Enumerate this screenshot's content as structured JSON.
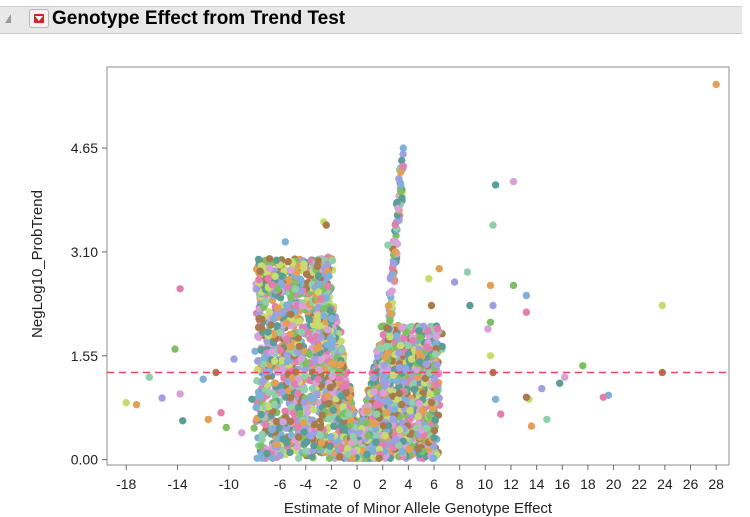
{
  "report": {
    "title": "Genotype Effect from Trend Test"
  },
  "chart_data": {
    "type": "scatter",
    "title": "",
    "xlabel": "Estimate of Minor Allele Genotype Effect",
    "ylabel": "NegLog10_ProbTrend",
    "xlim": [
      -19.5,
      29
    ],
    "ylim": [
      -0.08,
      5.86
    ],
    "x_ticks": [
      "-18",
      "-14",
      "-10",
      "-6",
      "-4",
      "-2",
      "0",
      "2",
      "4",
      "6",
      "8",
      "10",
      "12",
      "14",
      "16",
      "18",
      "20",
      "22",
      "24",
      "26",
      "28"
    ],
    "y_ticks": [
      "0.00",
      "1.55",
      "3.10",
      "4.65"
    ],
    "reference_line": {
      "y": 1.3,
      "style": "dashed",
      "color": "#e8475f"
    },
    "grid": false,
    "palette": [
      "#5a9e96",
      "#8fd0a8",
      "#9fa0e2",
      "#e2a055",
      "#c7dc70",
      "#a87a4e",
      "#7fb0d8",
      "#e27fb0",
      "#7dbf63",
      "#d8a2d8"
    ],
    "series": [
      {
        "name": "",
        "points": [
          [
            28,
            5.6
          ],
          [
            23.8,
            2.3
          ],
          [
            23.8,
            1.3
          ],
          [
            19.6,
            0.96
          ],
          [
            19.2,
            0.93
          ],
          [
            17.6,
            1.4
          ],
          [
            16.2,
            1.23
          ],
          [
            15.8,
            1.14
          ],
          [
            14.8,
            0.6
          ],
          [
            14.4,
            1.06
          ],
          [
            13.6,
            0.5
          ],
          [
            13.4,
            0.9
          ],
          [
            13.2,
            0.93
          ],
          [
            13.2,
            2.45
          ],
          [
            13.2,
            2.2
          ],
          [
            12.2,
            2.6
          ],
          [
            12.2,
            4.15
          ],
          [
            10.8,
            4.1
          ],
          [
            10.6,
            3.5
          ],
          [
            10.6,
            2.3
          ],
          [
            10.4,
            2.6
          ],
          [
            10.4,
            1.55
          ],
          [
            10.6,
            1.3
          ],
          [
            10.8,
            0.9
          ],
          [
            11.2,
            0.68
          ],
          [
            10.4,
            2.05
          ],
          [
            10.2,
            1.95
          ],
          [
            8.8,
            2.3
          ],
          [
            8.6,
            2.8
          ],
          [
            7.6,
            2.65
          ],
          [
            6.4,
            2.85
          ],
          [
            5.6,
            2.7
          ],
          [
            5.8,
            2.3
          ],
          [
            3.6,
            4.65
          ],
          [
            3.6,
            4.38
          ],
          [
            3.4,
            4.0
          ],
          [
            3.2,
            3.75
          ],
          [
            3.5,
            3.9
          ],
          [
            2.4,
            3.2
          ],
          [
            2.6,
            2.7
          ],
          [
            3.0,
            3.1
          ],
          [
            -2.6,
            3.55
          ],
          [
            -2.4,
            3.5
          ],
          [
            -5.6,
            3.25
          ],
          [
            -13.8,
            2.55
          ],
          [
            -14.2,
            1.65
          ],
          [
            -13.8,
            0.98
          ],
          [
            -13.6,
            0.58
          ],
          [
            -16.2,
            1.23
          ],
          [
            -15.2,
            0.92
          ],
          [
            -17.2,
            0.82
          ],
          [
            -18,
            0.85
          ],
          [
            -11,
            1.3
          ],
          [
            -12,
            1.2
          ],
          [
            -10.6,
            0.7
          ],
          [
            -10.2,
            0.48
          ],
          [
            -9,
            0.4
          ],
          [
            -8.2,
            0.9
          ],
          [
            -7.4,
            0.3
          ],
          [
            -9.6,
            1.5
          ],
          [
            -11.6,
            0.6
          ]
        ]
      }
    ]
  }
}
